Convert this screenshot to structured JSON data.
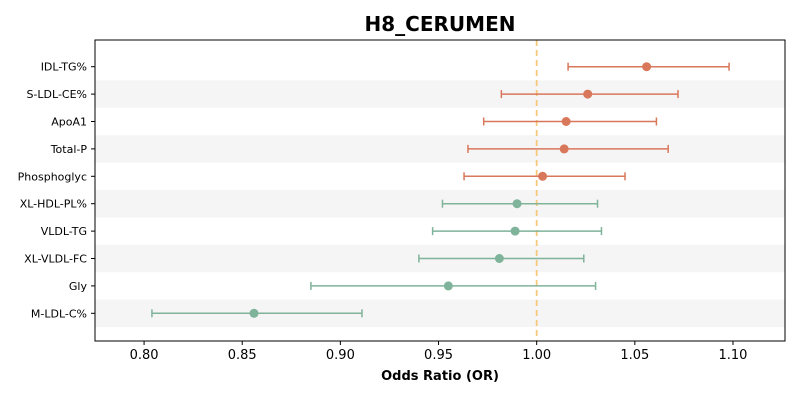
{
  "chart_data": {
    "type": "scatter",
    "subtype": "forest-plot",
    "title": "H8_CERUMEN",
    "xlabel": "Odds Ratio (OR)",
    "ylabel": "",
    "xlim": [
      0.775,
      1.1265
    ],
    "xticks": [
      0.8,
      0.85,
      0.9,
      0.95,
      1.0,
      1.05,
      1.1
    ],
    "xtick_labels": [
      "0.80",
      "0.85",
      "0.90",
      "0.95",
      "1.00",
      "1.05",
      "1.10"
    ],
    "reference_line": 1.0,
    "reference_line_color": "#f5c87a",
    "grid": false,
    "row_band_color": "#f5f5f5",
    "colors": {
      "positive": "#d9775a",
      "negative": "#7fb39a"
    },
    "rows": [
      {
        "label": "IDL-TG%",
        "or": 1.056,
        "lo": 1.016,
        "hi": 1.098,
        "group": "positive"
      },
      {
        "label": "S-LDL-CE%",
        "or": 1.026,
        "lo": 0.982,
        "hi": 1.072,
        "group": "positive"
      },
      {
        "label": "ApoA1",
        "or": 1.015,
        "lo": 0.973,
        "hi": 1.061,
        "group": "positive"
      },
      {
        "label": "Total-P",
        "or": 1.014,
        "lo": 0.965,
        "hi": 1.067,
        "group": "positive"
      },
      {
        "label": "Phosphoglyc",
        "or": 1.003,
        "lo": 0.963,
        "hi": 1.045,
        "group": "positive"
      },
      {
        "label": "XL-HDL-PL%",
        "or": 0.99,
        "lo": 0.952,
        "hi": 1.031,
        "group": "negative"
      },
      {
        "label": "VLDL-TG",
        "or": 0.989,
        "lo": 0.947,
        "hi": 1.033,
        "group": "negative"
      },
      {
        "label": "XL-VLDL-FC",
        "or": 0.981,
        "lo": 0.94,
        "hi": 1.024,
        "group": "negative"
      },
      {
        "label": "Gly",
        "or": 0.955,
        "lo": 0.885,
        "hi": 1.03,
        "group": "negative"
      },
      {
        "label": "M-LDL-C%",
        "or": 0.856,
        "lo": 0.804,
        "hi": 0.911,
        "group": "negative"
      }
    ]
  }
}
